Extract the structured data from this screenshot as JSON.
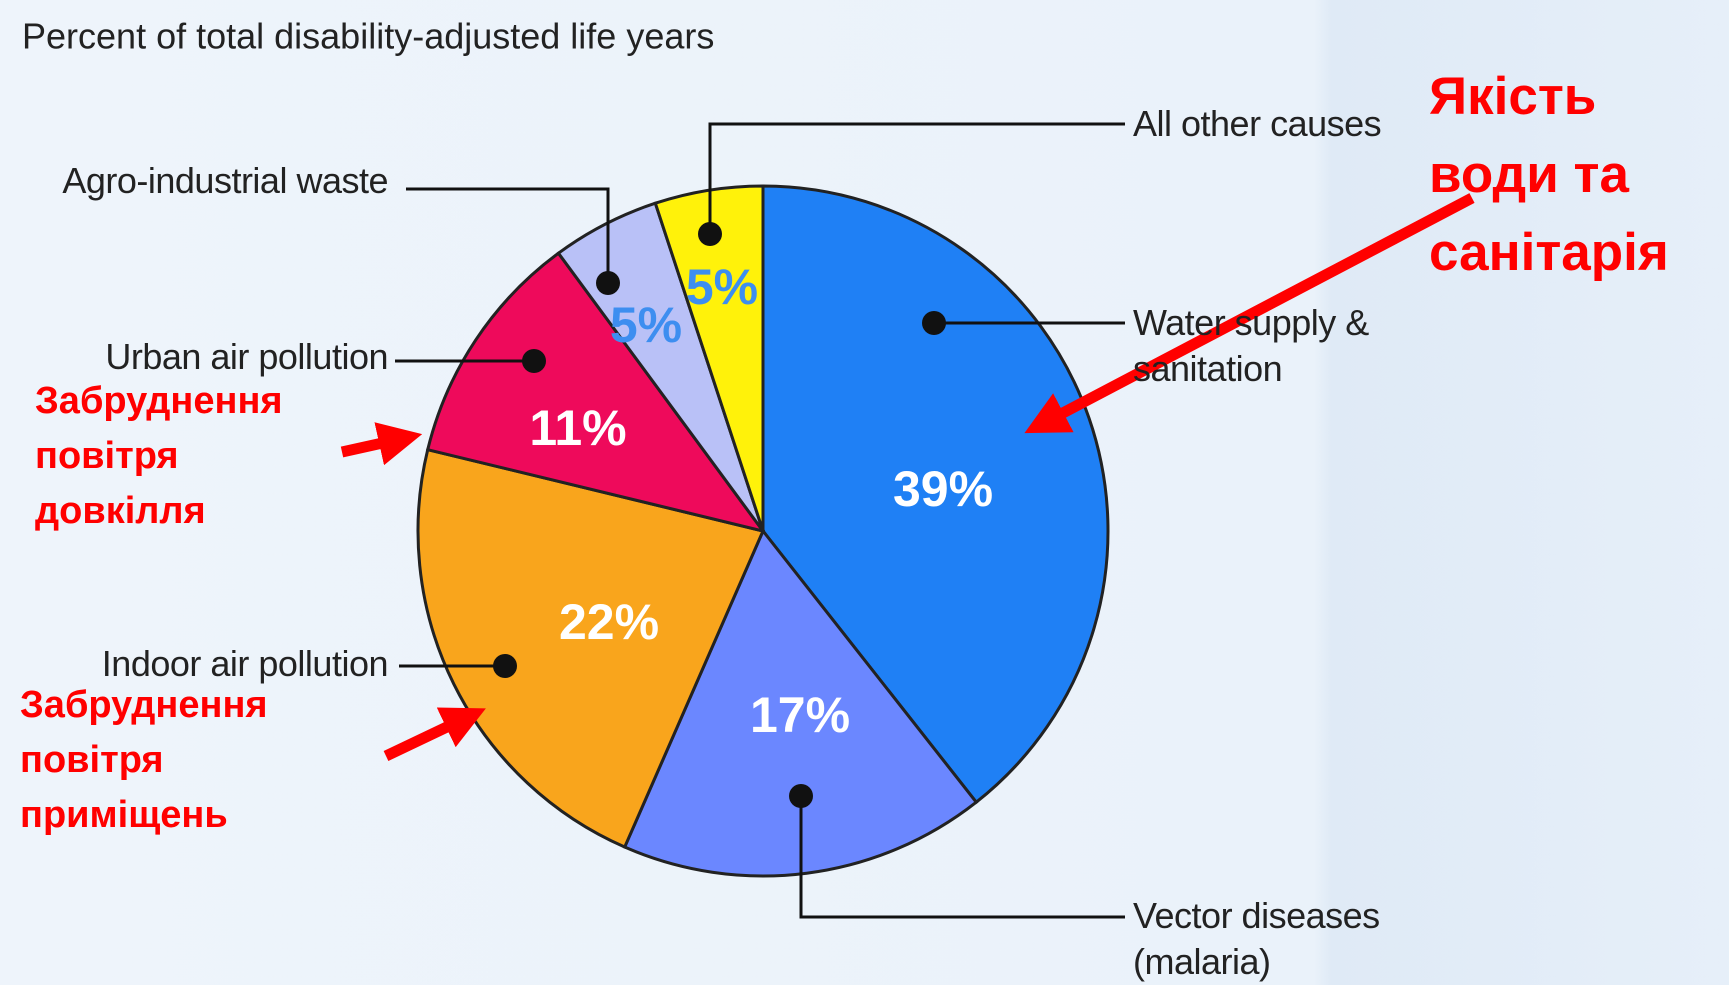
{
  "chart_data": {
    "type": "pie",
    "title": "Percent of total disability-adjusted life years",
    "categories": [
      "Water supply & sanitation",
      "Vector diseases (malaria)",
      "Indoor air pollution",
      "Urban air pollution",
      "Agro-industrial waste",
      "All other causes"
    ],
    "values": [
      39,
      17,
      22,
      11,
      5,
      5
    ],
    "value_labels": [
      "39%",
      "17%",
      "22%",
      "11%",
      "5%",
      "5%"
    ],
    "colors": [
      "#1f80f5",
      "#6b87ff",
      "#f9a51c",
      "#ee0a5b",
      "#b9c1f7",
      "#fff20a"
    ],
    "annotations": [
      {
        "lines": [
          "Якість",
          "води та",
          "санітарія"
        ]
      },
      {
        "lines": [
          "Забруднення",
          "повітря",
          "довкілля"
        ]
      },
      {
        "lines": [
          "Забруднення",
          "повітря",
          "приміщень"
        ]
      }
    ]
  }
}
